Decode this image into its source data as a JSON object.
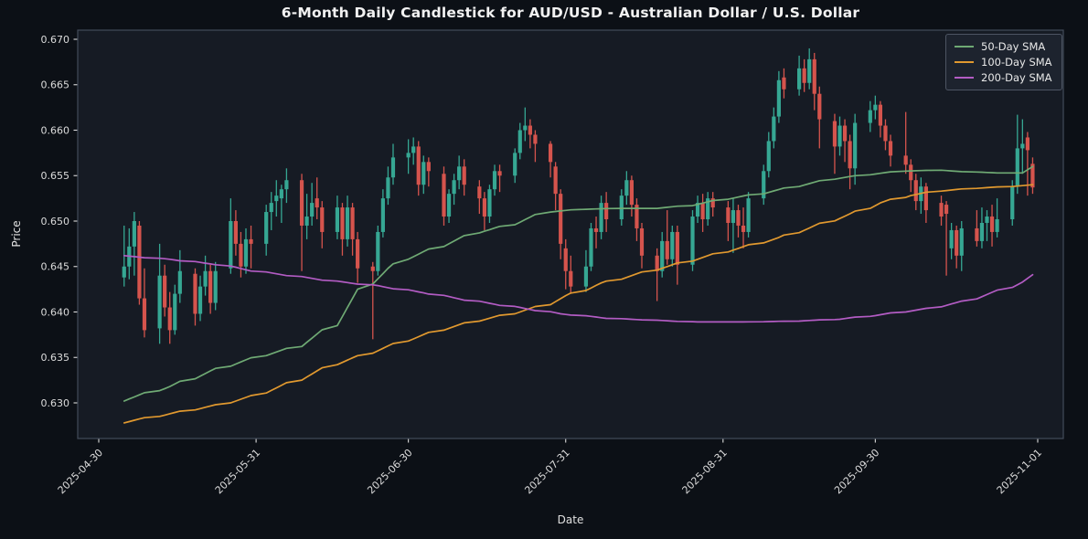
{
  "colors": {
    "background": "#0c1016",
    "plot_background": "#161b24",
    "plot_border": "#434b59",
    "title_text": "#f2f2f2",
    "tick_text": "#dcdcdc",
    "up_candle": "#36a793",
    "down_candle": "#d5544d"
  },
  "legend": {
    "items": [
      {
        "label": "50-Day SMA",
        "color": "#6faa74"
      },
      {
        "label": "100-Day SMA",
        "color": "#e1992f"
      },
      {
        "label": "200-Day SMA",
        "color": "#b35cc4"
      }
    ]
  },
  "chart_data": {
    "type": "candlestick",
    "title": "6-Month Daily Candlestick for AUD/USD - Australian Dollar / U.S. Dollar",
    "symbol": "AUD/USD",
    "xlabel": "Date",
    "ylabel": "Price",
    "ylim": [
      0.6261,
      0.671
    ],
    "grid": false,
    "legend_position": "upper right",
    "y_ticks": [
      0.67,
      0.665,
      0.66,
      0.655,
      0.65,
      0.645,
      0.64,
      0.635,
      0.63
    ],
    "x_ticks": [
      "2025-04-30",
      "2025-05-31",
      "2025-06-30",
      "2025-07-31",
      "2025-08-31",
      "2025-09-30",
      "2025-11-01"
    ],
    "candles_format": [
      "date",
      "open",
      "high",
      "low",
      "close"
    ],
    "candles": [
      [
        "2025-05-05",
        0.6438,
        0.6495,
        0.6428,
        0.645
      ],
      [
        "2025-05-06",
        0.645,
        0.6492,
        0.6436,
        0.6472
      ],
      [
        "2025-05-07",
        0.6472,
        0.651,
        0.644,
        0.65
      ],
      [
        "2025-05-08",
        0.6495,
        0.65,
        0.6408,
        0.6415
      ],
      [
        "2025-05-09",
        0.6415,
        0.6448,
        0.6372,
        0.638
      ],
      [
        "2025-05-12",
        0.6382,
        0.6475,
        0.6365,
        0.644
      ],
      [
        "2025-05-13",
        0.644,
        0.6452,
        0.6395,
        0.6405
      ],
      [
        "2025-05-14",
        0.6405,
        0.6422,
        0.6365,
        0.638
      ],
      [
        "2025-05-15",
        0.638,
        0.643,
        0.6375,
        0.642
      ],
      [
        "2025-05-16",
        0.642,
        0.6468,
        0.641,
        0.6445
      ],
      [
        "2025-05-19",
        0.6442,
        0.6448,
        0.6385,
        0.6398
      ],
      [
        "2025-05-20",
        0.6398,
        0.644,
        0.639,
        0.6428
      ],
      [
        "2025-05-21",
        0.6428,
        0.6462,
        0.6418,
        0.6445
      ],
      [
        "2025-05-22",
        0.6445,
        0.6452,
        0.6398,
        0.641
      ],
      [
        "2025-05-23",
        0.641,
        0.6455,
        0.6402,
        0.6445
      ],
      [
        "2025-05-26",
        0.6448,
        0.6525,
        0.6442,
        0.65
      ],
      [
        "2025-05-27",
        0.65,
        0.6512,
        0.6462,
        0.6475
      ],
      [
        "2025-05-28",
        0.6475,
        0.6488,
        0.6438,
        0.645
      ],
      [
        "2025-05-29",
        0.645,
        0.6492,
        0.6442,
        0.648
      ],
      [
        "2025-05-30",
        0.648,
        0.6495,
        0.6448,
        0.6475
      ],
      [
        "2025-06-02",
        0.6475,
        0.6518,
        0.6462,
        0.651
      ],
      [
        "2025-06-03",
        0.651,
        0.6532,
        0.649,
        0.652
      ],
      [
        "2025-06-04",
        0.6522,
        0.6545,
        0.6505,
        0.6528
      ],
      [
        "2025-06-05",
        0.6525,
        0.654,
        0.6498,
        0.6535
      ],
      [
        "2025-06-06",
        0.6535,
        0.6558,
        0.652,
        0.6545
      ],
      [
        "2025-06-09",
        0.6545,
        0.6552,
        0.6445,
        0.6495
      ],
      [
        "2025-06-10",
        0.6495,
        0.653,
        0.648,
        0.6505
      ],
      [
        "2025-06-11",
        0.6505,
        0.6542,
        0.6495,
        0.652
      ],
      [
        "2025-06-12",
        0.6525,
        0.6548,
        0.6502,
        0.6515
      ],
      [
        "2025-06-13",
        0.6515,
        0.6522,
        0.647,
        0.6488
      ],
      [
        "2025-06-16",
        0.6488,
        0.6528,
        0.648,
        0.6515
      ],
      [
        "2025-06-17",
        0.6515,
        0.652,
        0.6462,
        0.648
      ],
      [
        "2025-06-18",
        0.648,
        0.6528,
        0.6472,
        0.6515
      ],
      [
        "2025-06-19",
        0.6515,
        0.652,
        0.6462,
        0.648
      ],
      [
        "2025-06-20",
        0.648,
        0.6488,
        0.6432,
        0.6448
      ],
      [
        "2025-06-23",
        0.645,
        0.6455,
        0.637,
        0.6445
      ],
      [
        "2025-06-24",
        0.6445,
        0.6495,
        0.644,
        0.6488
      ],
      [
        "2025-06-25",
        0.6488,
        0.6535,
        0.6482,
        0.6525
      ],
      [
        "2025-06-26",
        0.6525,
        0.656,
        0.6518,
        0.6548
      ],
      [
        "2025-06-27",
        0.6548,
        0.6585,
        0.654,
        0.657
      ],
      [
        "2025-06-30",
        0.657,
        0.659,
        0.6552,
        0.6575
      ],
      [
        "2025-07-01",
        0.6575,
        0.6592,
        0.6562,
        0.6582
      ],
      [
        "2025-07-02",
        0.6582,
        0.6588,
        0.6528,
        0.654
      ],
      [
        "2025-07-03",
        0.654,
        0.6572,
        0.653,
        0.6565
      ],
      [
        "2025-07-04",
        0.6565,
        0.657,
        0.6538,
        0.6555
      ],
      [
        "2025-07-07",
        0.6552,
        0.656,
        0.6495,
        0.6505
      ],
      [
        "2025-07-08",
        0.6505,
        0.6535,
        0.6498,
        0.653
      ],
      [
        "2025-07-09",
        0.653,
        0.6552,
        0.6518,
        0.6545
      ],
      [
        "2025-07-10",
        0.6545,
        0.6572,
        0.6535,
        0.656
      ],
      [
        "2025-07-11",
        0.656,
        0.6568,
        0.6528,
        0.654
      ],
      [
        "2025-07-14",
        0.6538,
        0.6545,
        0.6508,
        0.6525
      ],
      [
        "2025-07-15",
        0.6525,
        0.6532,
        0.649,
        0.6505
      ],
      [
        "2025-07-16",
        0.6505,
        0.654,
        0.6498,
        0.6535
      ],
      [
        "2025-07-17",
        0.6535,
        0.6562,
        0.6528,
        0.6555
      ],
      [
        "2025-07-18",
        0.6555,
        0.6562,
        0.6532,
        0.655
      ],
      [
        "2025-07-21",
        0.655,
        0.658,
        0.6542,
        0.6575
      ],
      [
        "2025-07-22",
        0.6575,
        0.6608,
        0.6568,
        0.66
      ],
      [
        "2025-07-23",
        0.66,
        0.6625,
        0.6588,
        0.6605
      ],
      [
        "2025-07-24",
        0.6605,
        0.6612,
        0.658,
        0.6595
      ],
      [
        "2025-07-25",
        0.6595,
        0.66,
        0.6565,
        0.6585
      ],
      [
        "2025-07-28",
        0.6585,
        0.6588,
        0.6548,
        0.6565
      ],
      [
        "2025-07-29",
        0.656,
        0.6565,
        0.6512,
        0.653
      ],
      [
        "2025-07-30",
        0.653,
        0.6535,
        0.6458,
        0.6475
      ],
      [
        "2025-07-31",
        0.647,
        0.648,
        0.6425,
        0.6445
      ],
      [
        "2025-08-01",
        0.6445,
        0.6462,
        0.642,
        0.6428
      ],
      [
        "2025-08-04",
        0.6428,
        0.6468,
        0.6422,
        0.645
      ],
      [
        "2025-08-05",
        0.645,
        0.6498,
        0.6445,
        0.6492
      ],
      [
        "2025-08-06",
        0.6492,
        0.6505,
        0.647,
        0.6488
      ],
      [
        "2025-08-07",
        0.6488,
        0.6528,
        0.648,
        0.652
      ],
      [
        "2025-08-08",
        0.652,
        0.6532,
        0.6488,
        0.6502
      ],
      [
        "2025-08-11",
        0.6502,
        0.6535,
        0.6495,
        0.6528
      ],
      [
        "2025-08-12",
        0.6528,
        0.6555,
        0.6518,
        0.6545
      ],
      [
        "2025-08-13",
        0.6545,
        0.655,
        0.6505,
        0.6518
      ],
      [
        "2025-08-14",
        0.6518,
        0.6525,
        0.6478,
        0.6492
      ],
      [
        "2025-08-15",
        0.6492,
        0.6498,
        0.6448,
        0.6462
      ],
      [
        "2025-08-18",
        0.6462,
        0.647,
        0.6412,
        0.6445
      ],
      [
        "2025-08-19",
        0.6445,
        0.6488,
        0.6438,
        0.6478
      ],
      [
        "2025-08-20",
        0.6478,
        0.6512,
        0.6452,
        0.6458
      ],
      [
        "2025-08-21",
        0.6458,
        0.6495,
        0.645,
        0.6488
      ],
      [
        "2025-08-22",
        0.6488,
        0.6495,
        0.643,
        0.6452
      ],
      [
        "2025-08-25",
        0.6452,
        0.6512,
        0.6445,
        0.6505
      ],
      [
        "2025-08-26",
        0.6505,
        0.6528,
        0.6498,
        0.652
      ],
      [
        "2025-08-27",
        0.652,
        0.653,
        0.6488,
        0.6502
      ],
      [
        "2025-08-28",
        0.6502,
        0.6532,
        0.6495,
        0.6525
      ],
      [
        "2025-08-29",
        0.6525,
        0.6532,
        0.6505,
        0.6515
      ],
      [
        "2025-09-01",
        0.6515,
        0.6522,
        0.6478,
        0.6498
      ],
      [
        "2025-09-02",
        0.6498,
        0.6525,
        0.6465,
        0.6512
      ],
      [
        "2025-09-03",
        0.6512,
        0.6518,
        0.6482,
        0.6495
      ],
      [
        "2025-09-04",
        0.6495,
        0.6515,
        0.647,
        0.6488
      ],
      [
        "2025-09-05",
        0.6488,
        0.6532,
        0.6482,
        0.6525
      ],
      [
        "2025-09-08",
        0.6525,
        0.6562,
        0.6518,
        0.6555
      ],
      [
        "2025-09-09",
        0.6555,
        0.6598,
        0.6548,
        0.6588
      ],
      [
        "2025-09-10",
        0.6588,
        0.6625,
        0.658,
        0.6615
      ],
      [
        "2025-09-11",
        0.6615,
        0.6665,
        0.6608,
        0.6655
      ],
      [
        "2025-09-12",
        0.6658,
        0.6668,
        0.6635,
        0.6645
      ],
      [
        "2025-09-15",
        0.6645,
        0.6682,
        0.6638,
        0.6668
      ],
      [
        "2025-09-16",
        0.6668,
        0.6678,
        0.6642,
        0.6652
      ],
      [
        "2025-09-17",
        0.6652,
        0.669,
        0.6645,
        0.6678
      ],
      [
        "2025-09-18",
        0.6678,
        0.6685,
        0.6622,
        0.664
      ],
      [
        "2025-09-19",
        0.664,
        0.6648,
        0.658,
        0.6612
      ],
      [
        "2025-09-22",
        0.661,
        0.6618,
        0.6552,
        0.6582
      ],
      [
        "2025-09-23",
        0.6582,
        0.6615,
        0.6572,
        0.6605
      ],
      [
        "2025-09-24",
        0.6605,
        0.6612,
        0.6565,
        0.6588
      ],
      [
        "2025-09-25",
        0.6588,
        0.6595,
        0.6535,
        0.6558
      ],
      [
        "2025-09-26",
        0.6558,
        0.6618,
        0.654,
        0.6608
      ],
      [
        "2025-09-29",
        0.6608,
        0.6632,
        0.6598,
        0.6622
      ],
      [
        "2025-09-30",
        0.6622,
        0.6638,
        0.6612,
        0.6628
      ],
      [
        "2025-10-01",
        0.6628,
        0.6632,
        0.6592,
        0.6605
      ],
      [
        "2025-10-02",
        0.6605,
        0.6612,
        0.6578,
        0.6588
      ],
      [
        "2025-10-03",
        0.6588,
        0.6595,
        0.656,
        0.6572
      ],
      [
        "2025-10-06",
        0.6572,
        0.662,
        0.6552,
        0.6562
      ],
      [
        "2025-10-07",
        0.6562,
        0.6568,
        0.6532,
        0.6545
      ],
      [
        "2025-10-08",
        0.6545,
        0.6552,
        0.6512,
        0.6522
      ],
      [
        "2025-10-09",
        0.6522,
        0.6548,
        0.6508,
        0.6538
      ],
      [
        "2025-10-10",
        0.6538,
        0.6542,
        0.6498,
        0.6512
      ],
      [
        "2025-10-13",
        0.652,
        0.6528,
        0.6495,
        0.6505
      ],
      [
        "2025-10-14",
        0.6518,
        0.6522,
        0.644,
        0.6508
      ],
      [
        "2025-10-15",
        0.647,
        0.6498,
        0.6458,
        0.649
      ],
      [
        "2025-10-16",
        0.649,
        0.6495,
        0.6448,
        0.6462
      ],
      [
        "2025-10-17",
        0.6462,
        0.65,
        0.6445,
        0.6492
      ],
      [
        "2025-10-20",
        0.6492,
        0.6512,
        0.6472,
        0.6478
      ],
      [
        "2025-10-21",
        0.6478,
        0.6515,
        0.647,
        0.6498
      ],
      [
        "2025-10-22",
        0.6498,
        0.6512,
        0.6478,
        0.6505
      ],
      [
        "2025-10-23",
        0.6505,
        0.6518,
        0.6472,
        0.6488
      ],
      [
        "2025-10-24",
        0.6488,
        0.6525,
        0.6482,
        0.6502
      ],
      [
        "2025-10-27",
        0.6502,
        0.6545,
        0.6495,
        0.6538
      ],
      [
        "2025-10-28",
        0.6538,
        0.6617,
        0.653,
        0.658
      ],
      [
        "2025-10-29",
        0.658,
        0.6612,
        0.6552,
        0.6585
      ],
      [
        "2025-10-30",
        0.6592,
        0.6598,
        0.6528,
        0.6578
      ],
      [
        "2025-10-31",
        0.6563,
        0.657,
        0.653,
        0.6537
      ]
    ],
    "sma_series": [
      {
        "name": "50-Day SMA",
        "color": "#6faa74",
        "anchors": [
          [
            0,
            0.6302
          ],
          [
            7,
            0.6318
          ],
          [
            14,
            0.6338
          ],
          [
            20,
            0.6352
          ],
          [
            25,
            0.6362
          ],
          [
            30,
            0.6385
          ],
          [
            34,
            0.6425
          ],
          [
            38,
            0.6448
          ],
          [
            40,
            0.6458
          ],
          [
            45,
            0.6472
          ],
          [
            50,
            0.6487
          ],
          [
            55,
            0.6496
          ],
          [
            60,
            0.651
          ],
          [
            65,
            0.6513
          ],
          [
            70,
            0.6514
          ],
          [
            75,
            0.6514
          ],
          [
            80,
            0.6517
          ],
          [
            85,
            0.6524
          ],
          [
            90,
            0.653
          ],
          [
            95,
            0.6538
          ],
          [
            100,
            0.6546
          ],
          [
            105,
            0.6551
          ],
          [
            110,
            0.6555
          ],
          [
            115,
            0.6556
          ],
          [
            120,
            0.6554
          ],
          [
            124,
            0.6553
          ],
          [
            127,
            0.6553
          ],
          [
            129,
            0.656
          ]
        ]
      },
      {
        "name": "100-Day SMA",
        "color": "#e1992f",
        "anchors": [
          [
            0,
            0.6278
          ],
          [
            7,
            0.6288
          ],
          [
            14,
            0.6298
          ],
          [
            19,
            0.6308
          ],
          [
            25,
            0.6325
          ],
          [
            30,
            0.6342
          ],
          [
            34,
            0.6352
          ],
          [
            40,
            0.6368
          ],
          [
            45,
            0.638
          ],
          [
            50,
            0.639
          ],
          [
            55,
            0.6398
          ],
          [
            60,
            0.6408
          ],
          [
            63,
            0.6418
          ],
          [
            68,
            0.6432
          ],
          [
            73,
            0.6442
          ],
          [
            78,
            0.6452
          ],
          [
            83,
            0.6462
          ],
          [
            88,
            0.6472
          ],
          [
            93,
            0.6482
          ],
          [
            98,
            0.6495
          ],
          [
            103,
            0.6508
          ],
          [
            107,
            0.652
          ],
          [
            111,
            0.6528
          ],
          [
            115,
            0.6533
          ],
          [
            120,
            0.6536
          ],
          [
            125,
            0.6538
          ],
          [
            129,
            0.654
          ]
        ]
      },
      {
        "name": "200-Day SMA",
        "color": "#b35cc4",
        "anchors": [
          [
            0,
            0.6462
          ],
          [
            7,
            0.6458
          ],
          [
            14,
            0.6452
          ],
          [
            19,
            0.6445
          ],
          [
            25,
            0.6439
          ],
          [
            30,
            0.6434
          ],
          [
            36,
            0.6429
          ],
          [
            43,
            0.6421
          ],
          [
            49,
            0.6413
          ],
          [
            56,
            0.6405
          ],
          [
            62,
            0.6398
          ],
          [
            69,
            0.6393
          ],
          [
            75,
            0.6391
          ],
          [
            81,
            0.6389
          ],
          [
            88,
            0.6389
          ],
          [
            95,
            0.639
          ],
          [
            101,
            0.6392
          ],
          [
            106,
            0.6396
          ],
          [
            110,
            0.64
          ],
          [
            114,
            0.6404
          ],
          [
            119,
            0.6412
          ],
          [
            124,
            0.6424
          ],
          [
            127,
            0.6433
          ],
          [
            129,
            0.6441
          ]
        ]
      }
    ]
  }
}
